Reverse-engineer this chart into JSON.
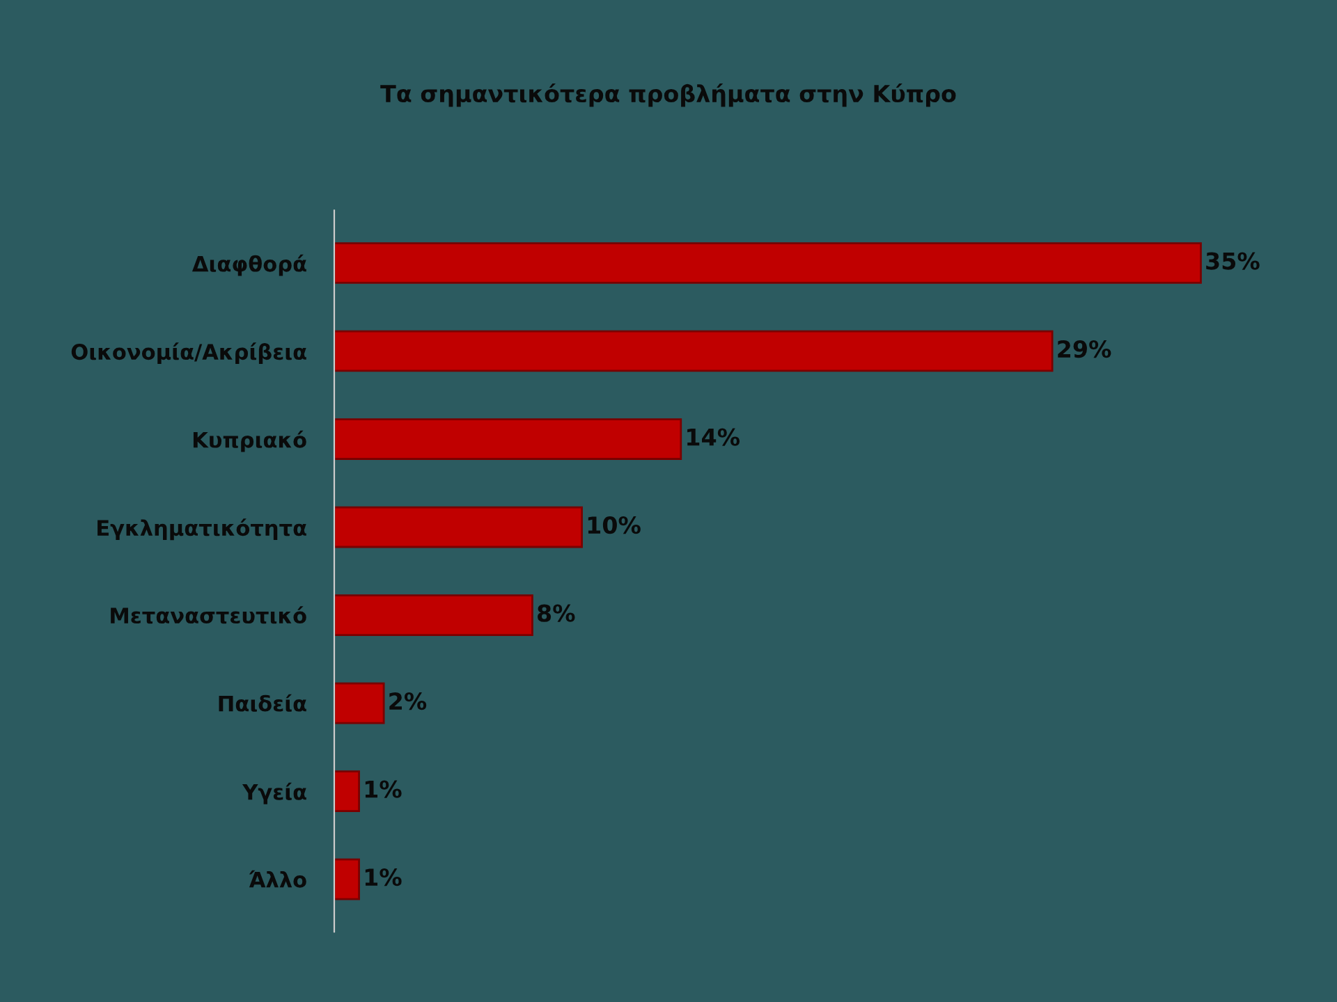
{
  "chart_data": {
    "type": "bar",
    "orientation": "horizontal",
    "title": "Τα σημαντικότερα προβλήματα στην Κύπρο",
    "categories": [
      "Διαφθορά",
      "Οικονομία/Ακρίβεια",
      "Κυπριακό",
      "Εγκληματικότητα",
      "Μεταναστευτικό",
      "Παιδεία",
      "Υγεία",
      "Άλλο"
    ],
    "values": [
      35,
      29,
      14,
      10,
      8,
      2,
      1,
      1
    ],
    "value_labels": [
      "35%",
      "29%",
      "14%",
      "10%",
      "8%",
      "2%",
      "1%",
      "1%"
    ],
    "color": "#c00000",
    "grid": false,
    "legend": false
  }
}
